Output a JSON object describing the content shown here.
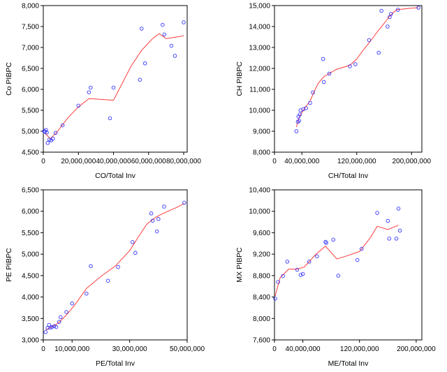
{
  "chart_data": [
    {
      "type": "scatter",
      "title": "",
      "xlabel": "CO/Total Inv",
      "ylabel": "Co PIBPC",
      "xlim": [
        0,
        82000000
      ],
      "ylim": [
        4500,
        8000
      ],
      "xticks": [
        0,
        20000000,
        40000000,
        60000000,
        80000000
      ],
      "xtick_labels": [
        "0",
        "20,000,000",
        "40,000,000",
        "60,000,000",
        "80,000,000"
      ],
      "yticks": [
        4500,
        5000,
        5500,
        6000,
        6500,
        7000,
        7500,
        8000
      ],
      "ytick_labels": [
        "4,500",
        "5,000",
        "5,500",
        "6,000",
        "6,500",
        "7,000",
        "7,500",
        "8,000"
      ],
      "points": [
        [
          500000,
          5000
        ],
        [
          1000000,
          4990
        ],
        [
          1500000,
          5030
        ],
        [
          2000000,
          4970
        ],
        [
          2500000,
          4720
        ],
        [
          3500000,
          4800
        ],
        [
          4500000,
          4780
        ],
        [
          5500000,
          4820
        ],
        [
          7000000,
          4960
        ],
        [
          11000000,
          5140
        ],
        [
          20000000,
          5610
        ],
        [
          26000000,
          5930
        ],
        [
          27000000,
          6040
        ],
        [
          38000000,
          5310
        ],
        [
          40000000,
          6040
        ],
        [
          55000000,
          6230
        ],
        [
          56000000,
          7450
        ],
        [
          58000000,
          6620
        ],
        [
          68000000,
          7540
        ],
        [
          69000000,
          7310
        ],
        [
          73000000,
          7040
        ],
        [
          75000000,
          6800
        ],
        [
          80000000,
          7600
        ]
      ],
      "fit_line": [
        [
          500000,
          4960
        ],
        [
          2000000,
          4910
        ],
        [
          4000000,
          4820
        ],
        [
          8000000,
          4990
        ],
        [
          14000000,
          5320
        ],
        [
          20000000,
          5580
        ],
        [
          26000000,
          5780
        ],
        [
          40000000,
          5740
        ],
        [
          50000000,
          6550
        ],
        [
          56000000,
          6930
        ],
        [
          62000000,
          7200
        ],
        [
          66000000,
          7330
        ],
        [
          70000000,
          7210
        ],
        [
          76000000,
          7250
        ],
        [
          80000000,
          7280
        ]
      ]
    },
    {
      "type": "scatter",
      "title": "",
      "xlabel": "CH/Total Inv",
      "ylabel": "CH PIBPC",
      "xlim": [
        0,
        215000000
      ],
      "ylim": [
        8000,
        15000
      ],
      "xticks": [
        0,
        40000000,
        120000000,
        200000000
      ],
      "xtick_labels": [
        "0",
        "40,000,000",
        "120,000,000",
        "200,000,000"
      ],
      "yticks": [
        8000,
        9000,
        10000,
        11000,
        12000,
        13000,
        14000,
        15000
      ],
      "ytick_labels": [
        "8,000",
        "9,000",
        "10,000",
        "11,000",
        "12,000",
        "13,000",
        "14,000",
        "15,000"
      ],
      "points": [
        [
          32000000,
          9000
        ],
        [
          34000000,
          9450
        ],
        [
          35000000,
          9700
        ],
        [
          36000000,
          9500
        ],
        [
          37000000,
          9800
        ],
        [
          38000000,
          10000
        ],
        [
          42000000,
          10050
        ],
        [
          46000000,
          10100
        ],
        [
          52000000,
          10350
        ],
        [
          56000000,
          10850
        ],
        [
          71000000,
          12450
        ],
        [
          72000000,
          11350
        ],
        [
          80000000,
          11750
        ],
        [
          110000000,
          12100
        ],
        [
          118000000,
          12200
        ],
        [
          138000000,
          13350
        ],
        [
          152000000,
          12750
        ],
        [
          156000000,
          14750
        ],
        [
          165000000,
          14000
        ],
        [
          168000000,
          14450
        ],
        [
          170000000,
          14600
        ],
        [
          180000000,
          14800
        ],
        [
          210000000,
          14900
        ]
      ],
      "fit_line": [
        [
          32000000,
          9200
        ],
        [
          36000000,
          9650
        ],
        [
          42000000,
          10000
        ],
        [
          52000000,
          10450
        ],
        [
          58000000,
          10900
        ],
        [
          64000000,
          11300
        ],
        [
          72000000,
          11600
        ],
        [
          90000000,
          11950
        ],
        [
          110000000,
          12150
        ],
        [
          120000000,
          12450
        ],
        [
          130000000,
          12900
        ],
        [
          140000000,
          13300
        ],
        [
          150000000,
          13750
        ],
        [
          160000000,
          14150
        ],
        [
          168000000,
          14500
        ],
        [
          178000000,
          14800
        ],
        [
          200000000,
          14880
        ],
        [
          210000000,
          14900
        ]
      ]
    },
    {
      "type": "scatter",
      "title": "",
      "xlabel": "PE/Total Inv",
      "ylabel": "PE PIBPC",
      "xlim": [
        0,
        50000000
      ],
      "ylim": [
        3000,
        6500
      ],
      "xticks": [
        0,
        10000000,
        30000000,
        50000000
      ],
      "xtick_labels": [
        "0",
        "10,000,000",
        "30,000,000",
        "50,000,000"
      ],
      "yticks": [
        3000,
        3500,
        4000,
        4500,
        5000,
        5500,
        6000,
        6500
      ],
      "ytick_labels": [
        "3,000",
        "3,500",
        "4,000",
        "4,500",
        "5,000",
        "5,500",
        "6,000",
        "6,500"
      ],
      "points": [
        [
          800000,
          3180
        ],
        [
          1500000,
          3280
        ],
        [
          2000000,
          3350
        ],
        [
          2500000,
          3290
        ],
        [
          3000000,
          3300
        ],
        [
          3800000,
          3320
        ],
        [
          4500000,
          3300
        ],
        [
          5500000,
          3420
        ],
        [
          6000000,
          3530
        ],
        [
          8000000,
          3650
        ],
        [
          10000000,
          3850
        ],
        [
          15000000,
          4080
        ],
        [
          16500000,
          4720
        ],
        [
          22500000,
          4380
        ],
        [
          26000000,
          4700
        ],
        [
          31000000,
          5280
        ],
        [
          32000000,
          5030
        ],
        [
          37500000,
          5950
        ],
        [
          38000000,
          5780
        ],
        [
          39500000,
          5530
        ],
        [
          40000000,
          5820
        ],
        [
          42000000,
          6110
        ],
        [
          49000000,
          6200
        ]
      ],
      "fit_line": [
        [
          800000,
          3230
        ],
        [
          2500000,
          3290
        ],
        [
          5000000,
          3380
        ],
        [
          8000000,
          3580
        ],
        [
          11000000,
          3820
        ],
        [
          15000000,
          4200
        ],
        [
          20000000,
          4480
        ],
        [
          25000000,
          4720
        ],
        [
          30000000,
          5080
        ],
        [
          33000000,
          5400
        ],
        [
          36000000,
          5700
        ],
        [
          39000000,
          5860
        ],
        [
          42000000,
          5960
        ],
        [
          46000000,
          6080
        ],
        [
          49000000,
          6180
        ]
      ]
    },
    {
      "type": "scatter",
      "title": "",
      "xlabel": "ME/Total Inv",
      "ylabel": "MX PIBPC",
      "xlim": [
        0,
        208000000
      ],
      "ylim": [
        7600,
        10400
      ],
      "xticks": [
        0,
        40000000,
        120000000,
        200000000
      ],
      "xtick_labels": [
        "0",
        "40,000,000",
        "120,000,000",
        "200,000,000"
      ],
      "yticks": [
        7600,
        8000,
        8400,
        8800,
        9200,
        9600,
        10000,
        10400
      ],
      "ytick_labels": [
        "7,600",
        "8,000",
        "8,400",
        "8,800",
        "9,200",
        "9,600",
        "10,000",
        "10,400"
      ],
      "points": [
        [
          1000000,
          8370
        ],
        [
          5000000,
          8680
        ],
        [
          12000000,
          8790
        ],
        [
          18000000,
          9060
        ],
        [
          32000000,
          8910
        ],
        [
          37000000,
          8810
        ],
        [
          40000000,
          8830
        ],
        [
          49000000,
          9060
        ],
        [
          60000000,
          9160
        ],
        [
          72000000,
          9430
        ],
        [
          73000000,
          9410
        ],
        [
          83000000,
          9470
        ],
        [
          90000000,
          8800
        ],
        [
          117000000,
          9090
        ],
        [
          123000000,
          9300
        ],
        [
          145000000,
          9970
        ],
        [
          160000000,
          9820
        ],
        [
          162000000,
          9490
        ],
        [
          172000000,
          9490
        ],
        [
          175000000,
          10050
        ],
        [
          177000000,
          9640
        ]
      ],
      "fit_line": [
        [
          1000000,
          8420
        ],
        [
          8000000,
          8760
        ],
        [
          20000000,
          8920
        ],
        [
          32000000,
          8920
        ],
        [
          42000000,
          8960
        ],
        [
          58000000,
          9190
        ],
        [
          72000000,
          9350
        ],
        [
          88000000,
          9110
        ],
        [
          105000000,
          9180
        ],
        [
          120000000,
          9250
        ],
        [
          135000000,
          9500
        ],
        [
          145000000,
          9720
        ],
        [
          160000000,
          9660
        ],
        [
          175000000,
          9740
        ]
      ]
    }
  ]
}
